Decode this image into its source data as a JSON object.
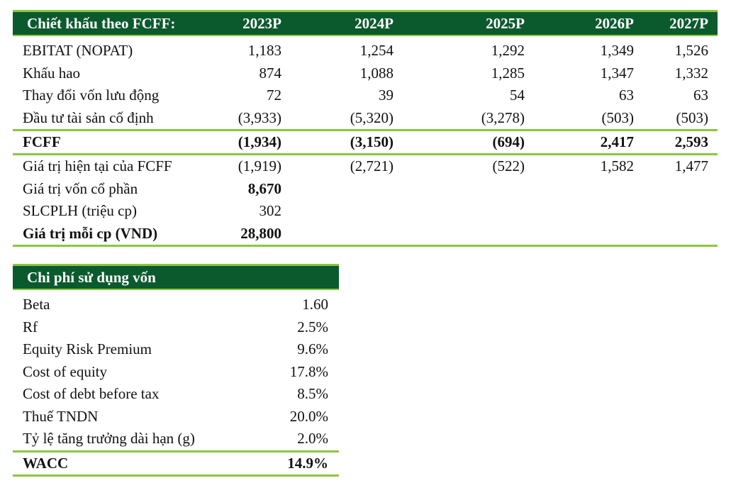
{
  "fcff_table": {
    "header": {
      "label": "Chiết khấu theo FCFF:",
      "years": [
        "2023P",
        "2024P",
        "2025P",
        "2026P",
        "2027P"
      ]
    },
    "rows": [
      {
        "label": "EBITAT (NOPAT)",
        "values": [
          "1,183",
          "1,254",
          "1,292",
          "1,349",
          "1,526"
        ]
      },
      {
        "label": "Khấu hao",
        "values": [
          "874",
          "1,088",
          "1,285",
          "1,347",
          "1,332"
        ]
      },
      {
        "label": "Thay đổi vốn lưu động",
        "values": [
          "72",
          "39",
          "54",
          "63",
          "63"
        ]
      },
      {
        "label": "Đầu tư tài sản cố định",
        "values": [
          "(3,933)",
          "(5,320)",
          "(3,278)",
          "(503)",
          "(503)"
        ]
      },
      {
        "label": "FCFF",
        "values": [
          "(1,934)",
          "(3,150)",
          "(694)",
          "2,417",
          "2,593"
        ],
        "bold": true
      },
      {
        "label": "Giá trị hiện tại của FCFF",
        "values": [
          "(1,919)",
          "(2,721)",
          "(522)",
          "1,582",
          "1,477"
        ]
      },
      {
        "label": "Giá trị vốn cổ phần",
        "values": [
          "8,670"
        ],
        "bold_value": true
      },
      {
        "label": "SLCPLH (triệu cp)",
        "values": [
          "302"
        ]
      },
      {
        "label": "Giá trị mỗi cp (VND)",
        "values": [
          "28,800"
        ],
        "bold": true
      }
    ]
  },
  "wacc_table": {
    "header": {
      "label": "Chi phí sử dụng vốn"
    },
    "rows": [
      {
        "label": "Beta",
        "value": "1.60"
      },
      {
        "label": "Rf",
        "value": "2.5%"
      },
      {
        "label": "Equity Risk Premium",
        "value": "9.6%"
      },
      {
        "label": "Cost of equity",
        "value": "17.8%"
      },
      {
        "label": "Cost of debt before tax",
        "value": "8.5%"
      },
      {
        "label": "Thuế TNDN",
        "value": "20.0%"
      },
      {
        "label": "Tỷ lệ tăng trưởng dài hạn (g)",
        "value": "2.0%"
      },
      {
        "label": "WACC",
        "value": "14.9%",
        "bold": true
      }
    ]
  },
  "colors": {
    "header_bg": "#0b5a2e",
    "rule": "#8cc63f"
  }
}
